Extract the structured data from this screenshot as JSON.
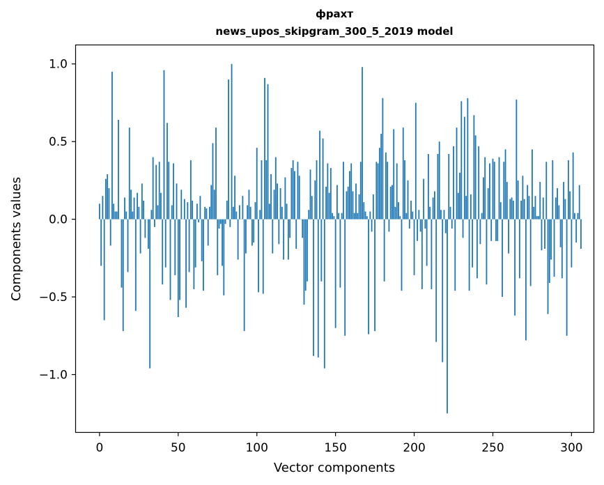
{
  "chart_data": {
    "type": "bar",
    "title_word": "фрахт",
    "title_model": "news_upos_skipgram_300_5_2019 model",
    "xlabel": "Vector components",
    "ylabel": "Components values",
    "xlim": [
      -15,
      314
    ],
    "ylim": [
      -1.37,
      1.12
    ],
    "x_ticks": [
      0,
      50,
      100,
      150,
      200,
      250,
      300
    ],
    "y_ticks": [
      -1.0,
      -0.5,
      0.0,
      0.5,
      1.0
    ],
    "y_tick_labels": [
      "−1.0",
      "−0.5",
      "0.0",
      "0.5",
      "1.0"
    ],
    "bar_color": "#1f77b4",
    "values": [
      0.1,
      -0.3,
      0.15,
      -0.65,
      0.26,
      0.29,
      0.2,
      -0.17,
      0.95,
      0.1,
      0.05,
      0.05,
      0.64,
      0.0,
      -0.44,
      -0.72,
      0.14,
      0.05,
      -0.34,
      0.59,
      0.19,
      0.05,
      0.14,
      -0.59,
      0.17,
      0.08,
      -0.22,
      0.23,
      0.12,
      -0.12,
      0.0,
      -0.19,
      -0.96,
      0.06,
      0.4,
      -0.05,
      0.35,
      0.09,
      0.37,
      0.17,
      -0.42,
      0.96,
      -0.31,
      0.62,
      0.37,
      -0.52,
      0.09,
      0.36,
      -0.36,
      0.23,
      -0.63,
      -0.52,
      0.19,
      0.0,
      0.13,
      -0.57,
      0.11,
      -0.34,
      0.38,
      0.12,
      -0.45,
      -0.31,
      0.1,
      -0.02,
      0.15,
      -0.27,
      -0.46,
      0.08,
      0.07,
      -0.17,
      0.08,
      0.22,
      0.49,
      0.19,
      0.59,
      -0.36,
      -0.06,
      -0.03,
      -0.3,
      -0.49,
      -0.03,
      0.12,
      0.9,
      -0.05,
      1.0,
      0.08,
      0.28,
      0.05,
      -0.26,
      0.09,
      0.0,
      0.15,
      -0.72,
      -0.22,
      0.09,
      0.19,
      0.08,
      -0.17,
      -0.15,
      0.11,
      0.46,
      -0.47,
      0.06,
      0.38,
      -0.48,
      0.91,
      0.38,
      0.87,
      0.1,
      0.29,
      -0.22,
      0.19,
      0.4,
      0.23,
      -0.16,
      0.2,
      0.08,
      -0.26,
      0.27,
      0.1,
      -0.26,
      -0.12,
      0.33,
      0.38,
      0.31,
      -0.19,
      0.37,
      0.28,
      0.0,
      -0.12,
      -0.55,
      -0.46,
      -0.4,
      0.06,
      0.32,
      0.15,
      -0.88,
      0.25,
      0.38,
      -0.89,
      0.57,
      -0.4,
      0.52,
      -0.96,
      0.21,
      0.36,
      0.17,
      0.33,
      0.04,
      0.02,
      -0.7,
      0.22,
      0.04,
      -0.44,
      0.04,
      0.37,
      -0.75,
      0.18,
      0.21,
      0.31,
      0.36,
      0.18,
      0.04,
      0.23,
      0.04,
      0.16,
      0.37,
      0.98,
      0.11,
      0.05,
      0.02,
      -0.74,
      0.05,
      -0.08,
      0.16,
      -0.72,
      0.37,
      0.36,
      0.46,
      0.55,
      0.78,
      -0.4,
      0.43,
      0.37,
      -0.08,
      0.21,
      0.22,
      0.58,
      0.08,
      0.36,
      0.11,
      0.02,
      -0.46,
      0.59,
      0.38,
      0.04,
      0.25,
      -0.06,
      0.12,
      0.05,
      -0.36,
      0.75,
      -0.14,
      0.06,
      -0.08,
      -0.45,
      0.26,
      -0.06,
      -0.3,
      0.42,
      0.08,
      -0.45,
      0.14,
      0.18,
      -0.79,
      0.42,
      0.5,
      0.06,
      -0.92,
      0.06,
      -0.09,
      -1.25,
      0.42,
      0.08,
      -0.06,
      0.47,
      -0.46,
      0.59,
      0.17,
      0.3,
      0.76,
      -0.12,
      0.66,
      0.15,
      0.78,
      -0.46,
      0.16,
      -0.31,
      0.67,
      0.54,
      -0.38,
      0.47,
      -0.16,
      0.04,
      0.27,
      0.4,
      -0.42,
      0.2,
      0.36,
      -0.14,
      0.39,
      0.37,
      -0.14,
      -0.14,
      0.4,
      0.11,
      -0.5,
      0.37,
      0.45,
      0.24,
      -0.22,
      0.13,
      0.14,
      0.12,
      -0.62,
      0.77,
      0.25,
      -0.38,
      0.12,
      0.28,
      0.13,
      -0.78,
      0.22,
      0.15,
      -0.43,
      0.45,
      0.08,
      0.15,
      0.02,
      0.02,
      0.24,
      -0.2,
      0.14,
      -0.19,
      0.37,
      -0.61,
      -0.41,
      -0.26,
      0.38,
      -0.37,
      0.14,
      0.2,
      0.09,
      -0.18,
      -0.38,
      0.24,
      0.13,
      -0.75,
      0.38,
      0.18,
      -0.31,
      0.43,
      0.04,
      -0.15,
      0.04,
      0.22,
      -0.19
    ]
  }
}
